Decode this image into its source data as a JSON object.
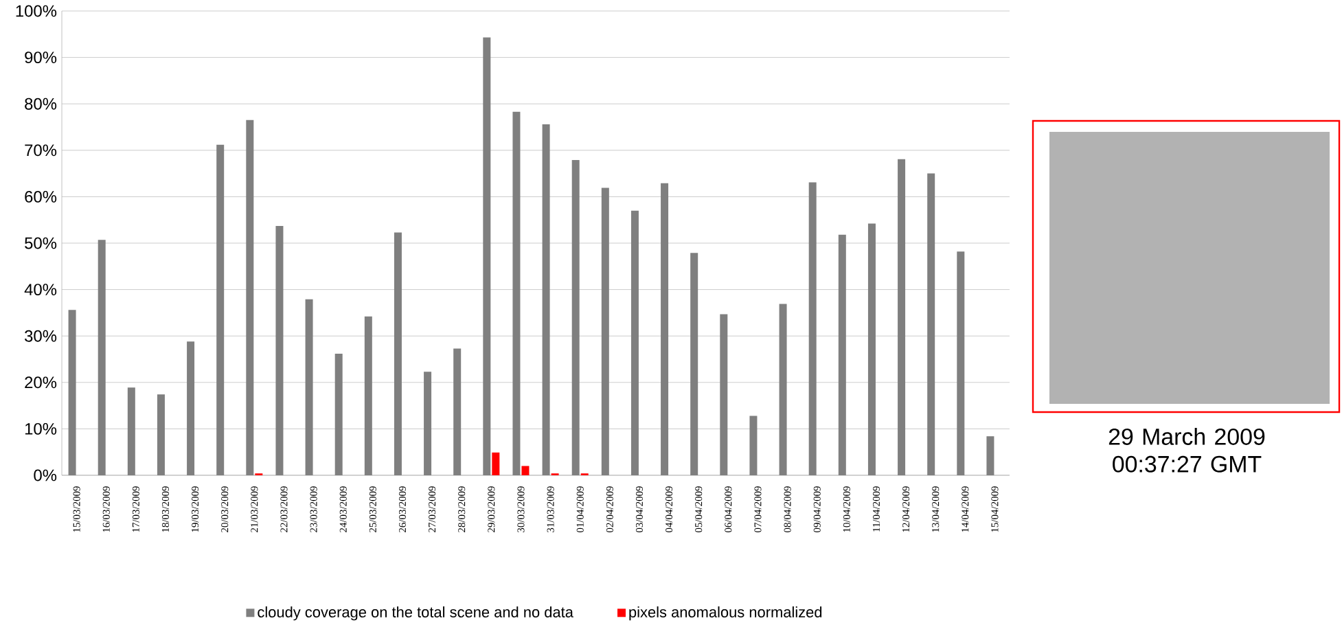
{
  "chart_data": {
    "type": "bar",
    "categories": [
      "15/03/2009",
      "16/03/2009",
      "17/03/2009",
      "18/03/2009",
      "19/03/2009",
      "20/03/2009",
      "21/03/2009",
      "22/03/2009",
      "23/03/2009",
      "24/03/2009",
      "25/03/2009",
      "26/03/2009",
      "27/03/2009",
      "28/03/2009",
      "29/03/2009",
      "30/03/2009",
      "31/03/2009",
      "01/04/2009",
      "02/04/2009",
      "03/04/2009",
      "04/04/2009",
      "05/04/2009",
      "06/04/2009",
      "07/04/2009",
      "08/04/2009",
      "09/04/2009",
      "10/04/2009",
      "11/04/2009",
      "12/04/2009",
      "13/04/2009",
      "14/04/2009",
      "15/04/2009"
    ],
    "series": [
      {
        "name": "cloudy coverage on the total scene and no data",
        "color": "#7f7f7f",
        "values": [
          35.6,
          50.7,
          18.9,
          17.4,
          28.8,
          71.2,
          76.5,
          53.7,
          37.9,
          26.2,
          34.2,
          52.3,
          22.3,
          27.3,
          94.3,
          78.3,
          75.6,
          67.9,
          61.9,
          57.0,
          62.9,
          47.9,
          34.7,
          12.8,
          36.9,
          63.1,
          51.8,
          54.2,
          68.1,
          65.0,
          48.2,
          8.4
        ]
      },
      {
        "name": "pixels anomalous normalized",
        "color": "#ff0000",
        "values": [
          0,
          0,
          0,
          0,
          0,
          0,
          0.4,
          0,
          0,
          0,
          0,
          0,
          0,
          0,
          4.9,
          2.0,
          0.4,
          0.4,
          0,
          0,
          0,
          0,
          0,
          0,
          0,
          0,
          0,
          0,
          0,
          0,
          0,
          0
        ]
      }
    ],
    "ylim": [
      0,
      100
    ],
    "yticks": [
      {
        "value": 0,
        "label": "0%"
      },
      {
        "value": 10,
        "label": "10%"
      },
      {
        "value": 20,
        "label": "20%"
      },
      {
        "value": 30,
        "label": "30%"
      },
      {
        "value": 40,
        "label": "40%"
      },
      {
        "value": 50,
        "label": "50%"
      },
      {
        "value": 60,
        "label": "60%"
      },
      {
        "value": 70,
        "label": "70%"
      },
      {
        "value": 80,
        "label": "80%"
      },
      {
        "value": 90,
        "label": "90%"
      },
      {
        "value": 100,
        "label": "100%"
      }
    ],
    "grid": "y",
    "legend": "bottom",
    "annotations": [
      "29 March 2009 00:37:27 GMT"
    ]
  }
}
